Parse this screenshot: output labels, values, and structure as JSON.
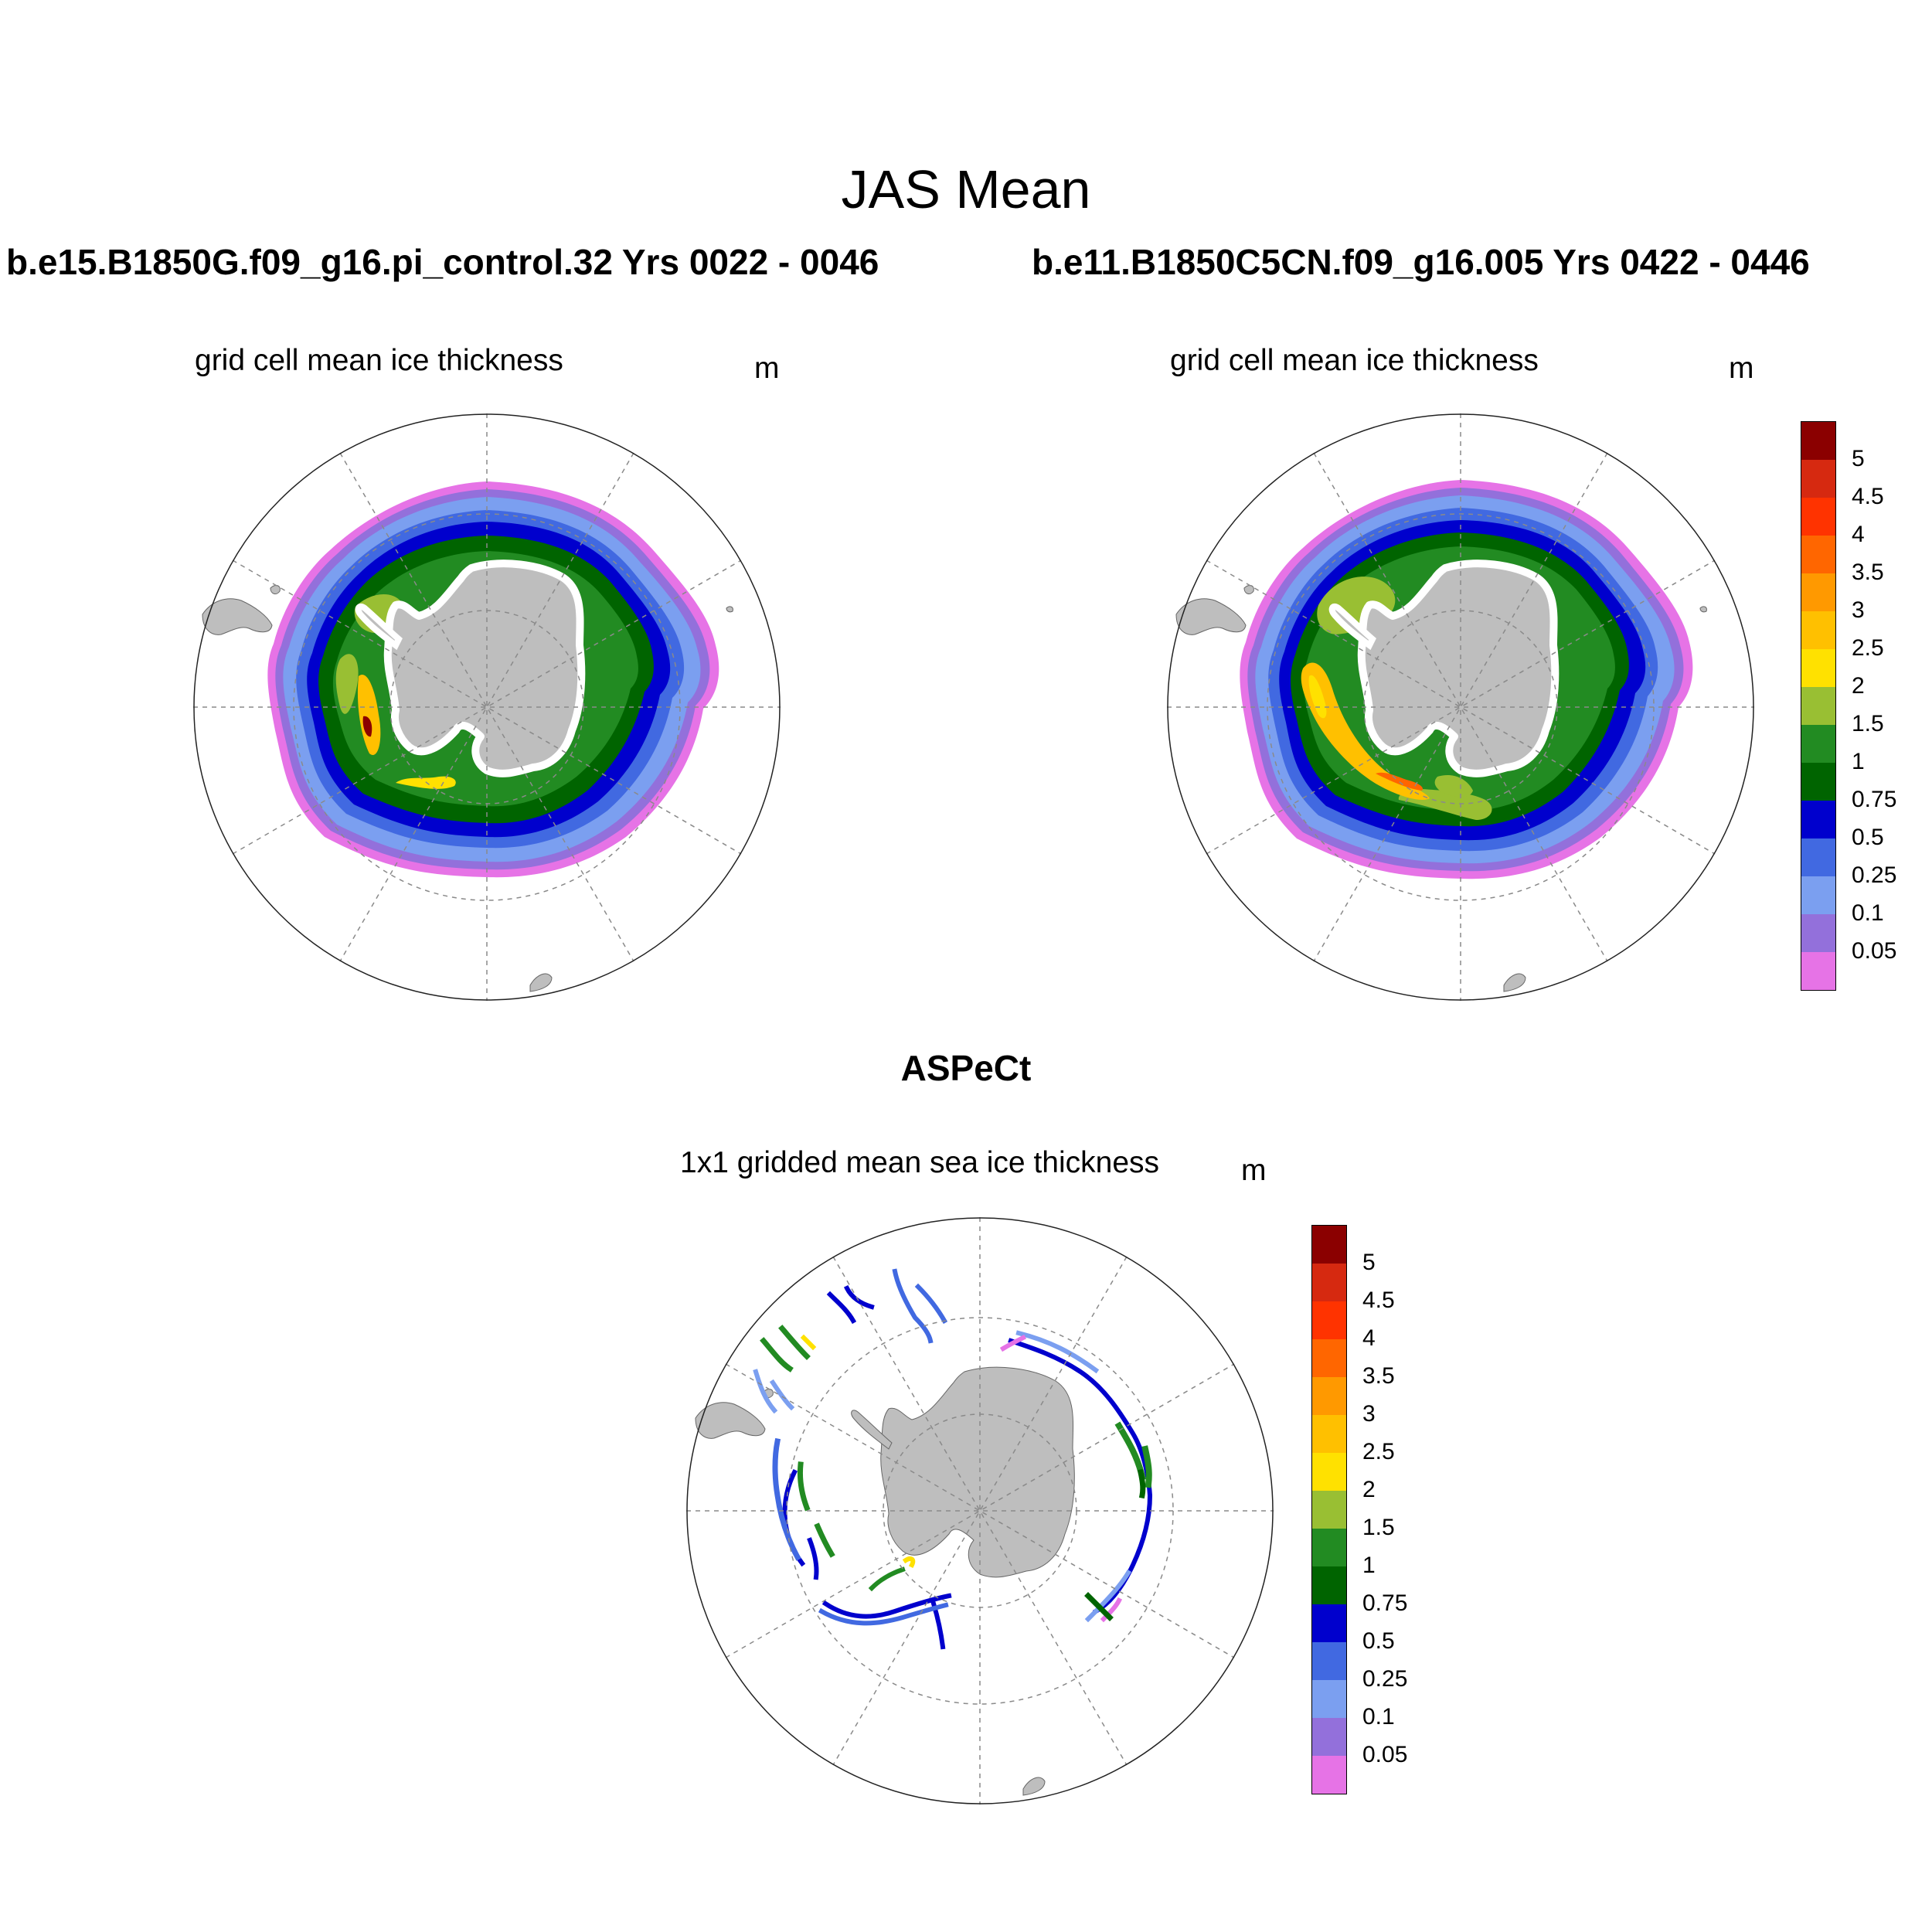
{
  "figure": {
    "title": "JAS Mean",
    "observation_title": "ASPeCt"
  },
  "panels": [
    {
      "run_title": "b.e15.B1850G.f09_g16.pi_control.32  Yrs 0022 - 0046",
      "subtitle": "grid cell mean ice thickness",
      "units": "m"
    },
    {
      "run_title": "b.e11.B1850C5CN.f09_g16.005  Yrs 0422 - 0446",
      "subtitle": "grid cell mean ice thickness",
      "units": "m"
    },
    {
      "subtitle": "1x1 gridded mean sea ice thickness",
      "units": "m"
    }
  ],
  "colorbar": {
    "labels": [
      "5",
      "4.5",
      "4",
      "3.5",
      "3",
      "2.5",
      "2",
      "1.5",
      "1",
      "0.75",
      "0.5",
      "0.25",
      "0.1",
      "0.05"
    ],
    "colors_top_to_bottom": [
      "#8b0000",
      "#d62910",
      "#ff3300",
      "#ff6600",
      "#ff9900",
      "#ffc000",
      "#ffe100",
      "#99bf33",
      "#228b22",
      "#006400",
      "#0000cd",
      "#4169e1",
      "#7b9ff0",
      "#9370db",
      "#e673e6"
    ]
  },
  "map_style": {
    "land_color": "#bebebe",
    "grid_color": "#8a8a8a",
    "projection": "south polar stereographic"
  }
}
